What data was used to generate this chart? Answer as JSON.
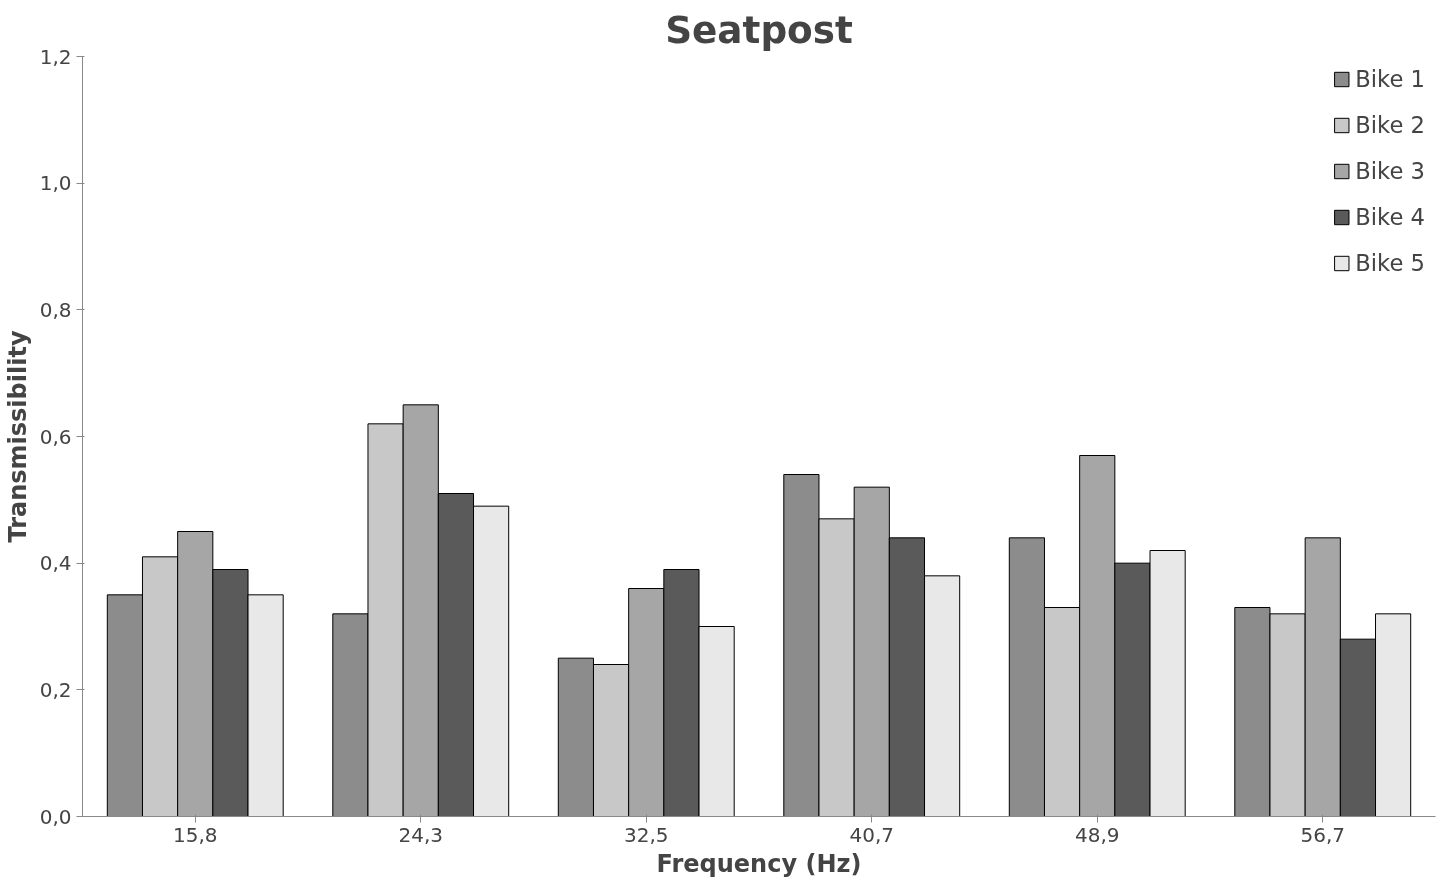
{
  "chart_data": {
    "type": "bar",
    "title": "Seatpost",
    "xlabel": "Frequency (Hz)",
    "ylabel": "Transmissibility",
    "categories": [
      "15,8",
      "24,3",
      "32,5",
      "40,7",
      "48,9",
      "56,7"
    ],
    "series": [
      {
        "name": "Bike 1",
        "color": "#8c8c8c",
        "values": [
          0.35,
          0.32,
          0.25,
          0.54,
          0.44,
          0.33
        ]
      },
      {
        "name": "Bike 2",
        "color": "#c8c8c8",
        "values": [
          0.41,
          0.62,
          0.24,
          0.47,
          0.33,
          0.32
        ]
      },
      {
        "name": "Bike 3",
        "color": "#a6a6a6",
        "values": [
          0.45,
          0.65,
          0.36,
          0.52,
          0.57,
          0.44
        ]
      },
      {
        "name": "Bike 4",
        "color": "#5a5a5a",
        "values": [
          0.39,
          0.51,
          0.39,
          0.44,
          0.4,
          0.28
        ]
      },
      {
        "name": "Bike 5",
        "color": "#e8e8e8",
        "values": [
          0.35,
          0.49,
          0.3,
          0.38,
          0.42,
          0.32
        ]
      }
    ],
    "ylim": [
      0,
      1.2
    ],
    "yticks": [
      {
        "value": 0,
        "label": "0,0"
      },
      {
        "value": 0.2,
        "label": "0,2"
      },
      {
        "value": 0.4,
        "label": "0,4"
      },
      {
        "value": 0.6,
        "label": "0,6"
      },
      {
        "value": 0.8,
        "label": "0,8"
      },
      {
        "value": 1.0,
        "label": "1,0"
      },
      {
        "value": 1.2,
        "label": "1,2"
      }
    ],
    "grid": false,
    "legend": "top right"
  }
}
